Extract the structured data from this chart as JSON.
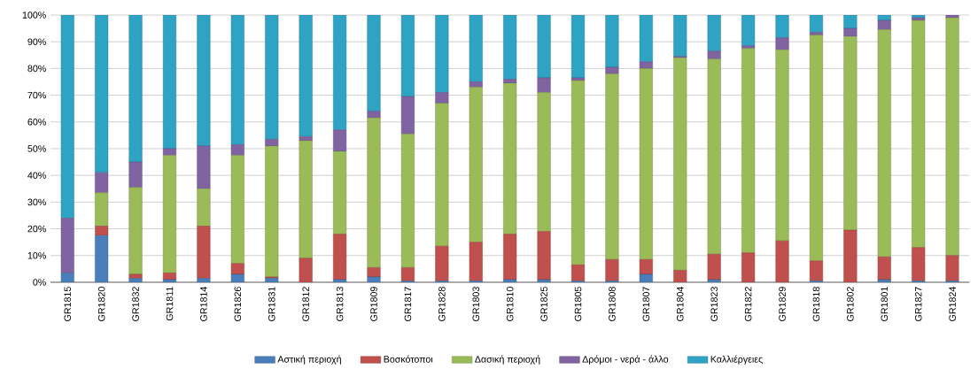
{
  "chart_data": {
    "type": "bar",
    "stacked": true,
    "categories": [
      "GR1815",
      "GR1820",
      "GR1832",
      "GR1811",
      "GR1814",
      "GR1826",
      "GR1831",
      "GR1812",
      "GR1813",
      "GR1809",
      "GR1817",
      "GR1828",
      "GR1803",
      "GR1810",
      "GR1825",
      "GR1805",
      "GR1808",
      "GR1807",
      "GR1804",
      "GR1823",
      "GR1822",
      "GR1829",
      "GR1818",
      "GR1802",
      "GR1801",
      "GR1827",
      "GR1824"
    ],
    "series": [
      {
        "name": "Αστική περιοχή",
        "color": "#4a7ebb",
        "values": [
          3.5,
          17.5,
          1.5,
          1,
          1.5,
          3,
          1.5,
          0,
          1,
          2,
          0.5,
          0.5,
          0.5,
          1,
          1,
          0.5,
          0.5,
          3,
          0,
          1,
          0,
          0,
          0.5,
          0,
          1,
          0.5,
          0.5
        ]
      },
      {
        "name": "Βοσκότοποι",
        "color": "#c0504d",
        "values": [
          0,
          3.5,
          1.5,
          2.5,
          19.5,
          4,
          0.5,
          9,
          17,
          3.5,
          5,
          13,
          14.5,
          17,
          18,
          6,
          8,
          5.5,
          4.5,
          9.5,
          11,
          15.5,
          7.5,
          19.5,
          8.5,
          12.5,
          9.5
        ]
      },
      {
        "name": "Δασική περιοχή",
        "color": "#9bbb59",
        "values": [
          0,
          12.5,
          32.5,
          44,
          14,
          40.5,
          49,
          44,
          31,
          56,
          50,
          53.5,
          58,
          56.5,
          52,
          69,
          69.5,
          71.5,
          79.5,
          73,
          76.5,
          71.5,
          84.5,
          72.5,
          85,
          85,
          89
        ]
      },
      {
        "name": "Δρόμοι - νερά - άλλο",
        "color": "#8064a2",
        "values": [
          20.5,
          7.5,
          9.5,
          2.5,
          16,
          4,
          2.5,
          1.5,
          8,
          2.5,
          14,
          4,
          2,
          1.5,
          5.5,
          1,
          2.5,
          2.5,
          0.5,
          3,
          1,
          4.5,
          1,
          3,
          3.5,
          1,
          1
        ]
      },
      {
        "name": "Καλλιέργειες",
        "color": "#2fa3c4",
        "values": [
          76,
          59,
          55,
          50,
          49,
          48.5,
          46.5,
          45.5,
          43,
          36,
          30.5,
          29,
          25,
          24,
          23.5,
          23.5,
          19.5,
          17.5,
          15.5,
          13.5,
          11.5,
          8.5,
          6.5,
          5,
          2,
          1,
          0
        ]
      }
    ],
    "ylim": [
      0,
      100
    ],
    "yticks": [
      {
        "value": 0,
        "label": "0%"
      },
      {
        "value": 10,
        "label": "10%"
      },
      {
        "value": 20,
        "label": "20%"
      },
      {
        "value": 30,
        "label": "30%"
      },
      {
        "value": 40,
        "label": "40%"
      },
      {
        "value": 50,
        "label": "50%"
      },
      {
        "value": 60,
        "label": "60%"
      },
      {
        "value": 70,
        "label": "70%"
      },
      {
        "value": 80,
        "label": "80%"
      },
      {
        "value": 90,
        "label": "90%"
      },
      {
        "value": 100,
        "label": "100%"
      }
    ],
    "grid": "y",
    "legend": "bottom"
  }
}
